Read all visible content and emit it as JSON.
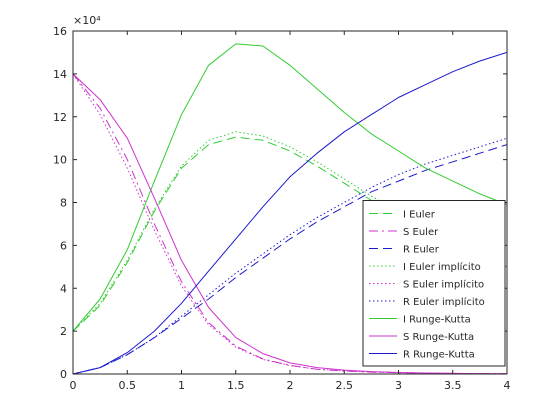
{
  "chart_data": {
    "type": "line",
    "title": "",
    "xlabel": "",
    "ylabel": "",
    "xlim": [
      0,
      4
    ],
    "ylim": [
      0,
      160000
    ],
    "y_exponent_label": "×10⁴",
    "x_ticks": [
      0,
      0.5,
      1,
      1.5,
      2,
      2.5,
      3,
      3.5,
      4
    ],
    "x_tick_labels": [
      "0",
      "0.5",
      "1",
      "1.5",
      "2",
      "2.5",
      "3",
      "3.5",
      "4"
    ],
    "y_ticks": [
      0,
      20000,
      40000,
      60000,
      80000,
      100000,
      120000,
      140000,
      160000
    ],
    "y_tick_labels": [
      "0",
      "2",
      "4",
      "6",
      "8",
      "10",
      "12",
      "14",
      "16"
    ],
    "grid": false,
    "legend_position": "bottom-right",
    "x": [
      0,
      0.25,
      0.5,
      0.75,
      1.0,
      1.25,
      1.5,
      1.75,
      2.0,
      2.25,
      2.5,
      2.75,
      3.0,
      3.25,
      3.5,
      3.75,
      4.0
    ],
    "series": [
      {
        "name": "I Euler",
        "color": "#33cc33",
        "style": "dash",
        "values": [
          20000,
          32000,
          52000,
          76000,
          96000,
          107000,
          110500,
          109000,
          104000,
          97000,
          89000,
          81000,
          74000,
          67000,
          61000,
          55000,
          50000
        ]
      },
      {
        "name": "S Euler",
        "color": "#cc33cc",
        "style": "dashdot",
        "values": [
          140000,
          124000,
          100000,
          70000,
          43000,
          24000,
          13000,
          7000,
          4000,
          2200,
          1400,
          900,
          600,
          400,
          300,
          200,
          150
        ]
      },
      {
        "name": "R Euler",
        "color": "#1a1acc",
        "style": "dash",
        "values": [
          0,
          3000,
          9000,
          17000,
          26000,
          35000,
          45000,
          54000,
          63000,
          71000,
          78000,
          85000,
          90000,
          95000,
          99000,
          103000,
          107000
        ]
      },
      {
        "name": "I Euler implícito",
        "color": "#33cc33",
        "style": "dot",
        "values": [
          20000,
          33000,
          53000,
          77000,
          97000,
          109000,
          113000,
          111000,
          106000,
          99000,
          91000,
          83000,
          76000,
          69000,
          63000,
          57000,
          52000
        ]
      },
      {
        "name": "S Euler implícito",
        "color": "#cc33cc",
        "style": "dot",
        "values": [
          140000,
          121000,
          96000,
          67000,
          41000,
          23000,
          12500,
          6800,
          3900,
          2200,
          1400,
          900,
          600,
          400,
          300,
          200,
          150
        ]
      },
      {
        "name": "R Euler implícito",
        "color": "#1a1acc",
        "style": "dot",
        "values": [
          0,
          3000,
          9000,
          17000,
          27000,
          37000,
          47000,
          56000,
          65000,
          73000,
          80000,
          87000,
          93000,
          98000,
          102000,
          106000,
          110000
        ]
      },
      {
        "name": "I Runge-Kutta",
        "color": "#33cc33",
        "style": "solid",
        "values": [
          20000,
          35000,
          58000,
          90000,
          121000,
          144000,
          154000,
          153000,
          144000,
          133000,
          122000,
          112000,
          104000,
          96000,
          90000,
          84000,
          79000
        ]
      },
      {
        "name": "S Runge-Kutta",
        "color": "#cc33cc",
        "style": "solid",
        "values": [
          140000,
          128000,
          110000,
          82000,
          53000,
          31000,
          17000,
          9500,
          5200,
          3000,
          1800,
          1100,
          700,
          450,
          300,
          200,
          150
        ]
      },
      {
        "name": "R Runge-Kutta",
        "color": "#1a1acc",
        "style": "solid",
        "values": [
          0,
          3000,
          10000,
          20000,
          33000,
          48000,
          63000,
          78000,
          92000,
          103000,
          113000,
          121000,
          129000,
          135000,
          141000,
          146000,
          150000
        ]
      }
    ]
  }
}
